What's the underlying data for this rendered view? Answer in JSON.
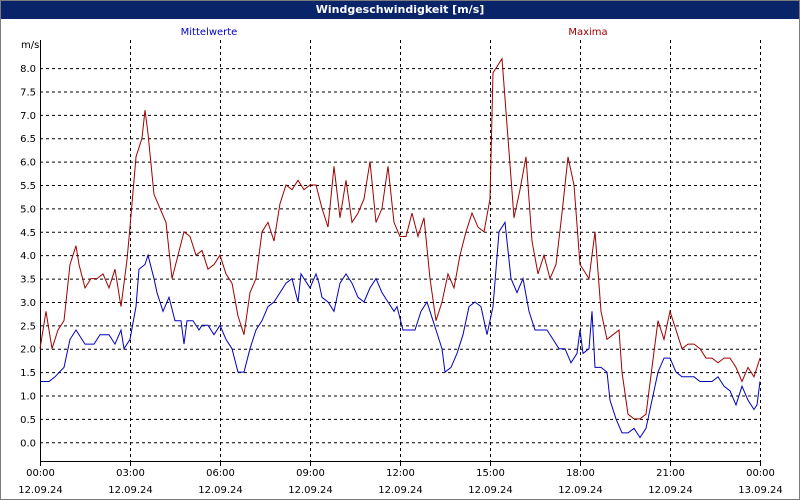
{
  "window": {
    "title": "Windgeschwindigkeit [m/s]"
  },
  "chart_data": {
    "type": "line",
    "title": "Windgeschwindigkeit [m/s]",
    "ylabel": "m/s",
    "xlabel": "",
    "ylim": [
      -0.4,
      8.6
    ],
    "xlim": [
      0,
      24
    ],
    "grid": true,
    "y_ticks": [
      "0.0",
      "0.5",
      "1.0",
      "1.5",
      "2.0",
      "2.5",
      "3.0",
      "3.5",
      "4.0",
      "4.5",
      "5.0",
      "5.5",
      "6.0",
      "6.5",
      "7.0",
      "7.5",
      "8.0"
    ],
    "x_ticks": [
      {
        "time": "00:00",
        "date": "12.09.24"
      },
      {
        "time": "03:00",
        "date": "12.09.24"
      },
      {
        "time": "06:00",
        "date": "12.09.24"
      },
      {
        "time": "09:00",
        "date": "12.09.24"
      },
      {
        "time": "12:00",
        "date": "12.09.24"
      },
      {
        "time": "15:00",
        "date": "12.09.24"
      },
      {
        "time": "18:00",
        "date": "12.09.24"
      },
      {
        "time": "21:00",
        "date": "12.09.24"
      },
      {
        "time": "00:00",
        "date": "13.09.24"
      }
    ],
    "series": [
      {
        "name": "Mittelwerte",
        "color": "#0000c0",
        "points": [
          [
            0.0,
            1.3
          ],
          [
            0.3,
            1.3
          ],
          [
            0.5,
            1.4
          ],
          [
            0.8,
            1.6
          ],
          [
            1.0,
            2.2
          ],
          [
            1.2,
            2.4
          ],
          [
            1.5,
            2.1
          ],
          [
            1.8,
            2.1
          ],
          [
            2.0,
            2.3
          ],
          [
            2.3,
            2.3
          ],
          [
            2.5,
            2.1
          ],
          [
            2.7,
            2.4
          ],
          [
            2.8,
            2.0
          ],
          [
            3.0,
            2.2
          ],
          [
            3.2,
            2.9
          ],
          [
            3.3,
            3.7
          ],
          [
            3.5,
            3.8
          ],
          [
            3.6,
            4.0
          ],
          [
            3.8,
            3.5
          ],
          [
            3.9,
            3.2
          ],
          [
            4.1,
            2.8
          ],
          [
            4.3,
            3.1
          ],
          [
            4.5,
            2.6
          ],
          [
            4.7,
            2.6
          ],
          [
            4.8,
            2.1
          ],
          [
            4.9,
            2.6
          ],
          [
            5.1,
            2.6
          ],
          [
            5.3,
            2.4
          ],
          [
            5.4,
            2.5
          ],
          [
            5.6,
            2.5
          ],
          [
            5.8,
            2.3
          ],
          [
            6.0,
            2.5
          ],
          [
            6.2,
            2.2
          ],
          [
            6.4,
            2.0
          ],
          [
            6.6,
            1.5
          ],
          [
            6.8,
            1.5
          ],
          [
            7.0,
            2.0
          ],
          [
            7.2,
            2.4
          ],
          [
            7.4,
            2.6
          ],
          [
            7.6,
            2.9
          ],
          [
            7.8,
            3.0
          ],
          [
            8.0,
            3.2
          ],
          [
            8.2,
            3.4
          ],
          [
            8.4,
            3.5
          ],
          [
            8.6,
            3.0
          ],
          [
            8.7,
            3.6
          ],
          [
            8.8,
            3.5
          ],
          [
            9.0,
            3.3
          ],
          [
            9.2,
            3.6
          ],
          [
            9.3,
            3.4
          ],
          [
            9.4,
            3.1
          ],
          [
            9.6,
            3.0
          ],
          [
            9.8,
            2.8
          ],
          [
            10.0,
            3.4
          ],
          [
            10.2,
            3.6
          ],
          [
            10.4,
            3.4
          ],
          [
            10.6,
            3.1
          ],
          [
            10.8,
            3.0
          ],
          [
            11.0,
            3.3
          ],
          [
            11.2,
            3.5
          ],
          [
            11.4,
            3.2
          ],
          [
            11.6,
            3.0
          ],
          [
            11.8,
            2.8
          ],
          [
            11.9,
            2.9
          ],
          [
            12.1,
            2.4
          ],
          [
            12.3,
            2.4
          ],
          [
            12.5,
            2.4
          ],
          [
            12.7,
            2.8
          ],
          [
            12.9,
            3.0
          ],
          [
            13.1,
            2.6
          ],
          [
            13.2,
            2.4
          ],
          [
            13.4,
            2.0
          ],
          [
            13.5,
            1.5
          ],
          [
            13.7,
            1.6
          ],
          [
            13.9,
            1.9
          ],
          [
            14.1,
            2.3
          ],
          [
            14.3,
            2.9
          ],
          [
            14.5,
            3.0
          ],
          [
            14.7,
            2.9
          ],
          [
            14.9,
            2.3
          ],
          [
            15.1,
            2.9
          ],
          [
            15.3,
            4.5
          ],
          [
            15.5,
            4.7
          ],
          [
            15.7,
            3.5
          ],
          [
            15.9,
            3.2
          ],
          [
            16.1,
            3.5
          ],
          [
            16.3,
            2.8
          ],
          [
            16.5,
            2.4
          ],
          [
            16.7,
            2.4
          ],
          [
            16.9,
            2.4
          ],
          [
            17.1,
            2.2
          ],
          [
            17.3,
            2.0
          ],
          [
            17.5,
            2.0
          ],
          [
            17.7,
            1.7
          ],
          [
            17.9,
            1.9
          ],
          [
            18.0,
            2.4
          ],
          [
            18.1,
            1.9
          ],
          [
            18.3,
            2.0
          ],
          [
            18.4,
            2.8
          ],
          [
            18.5,
            1.6
          ],
          [
            18.7,
            1.6
          ],
          [
            18.9,
            1.5
          ],
          [
            19.0,
            0.9
          ],
          [
            19.2,
            0.5
          ],
          [
            19.4,
            0.2
          ],
          [
            19.6,
            0.2
          ],
          [
            19.8,
            0.3
          ],
          [
            20.0,
            0.1
          ],
          [
            20.2,
            0.3
          ],
          [
            20.4,
            0.9
          ],
          [
            20.6,
            1.5
          ],
          [
            20.8,
            1.8
          ],
          [
            21.0,
            1.8
          ],
          [
            21.2,
            1.5
          ],
          [
            21.4,
            1.4
          ],
          [
            21.6,
            1.4
          ],
          [
            21.8,
            1.4
          ],
          [
            22.0,
            1.3
          ],
          [
            22.2,
            1.3
          ],
          [
            22.4,
            1.3
          ],
          [
            22.6,
            1.4
          ],
          [
            22.8,
            1.2
          ],
          [
            23.0,
            1.1
          ],
          [
            23.2,
            0.8
          ],
          [
            23.4,
            1.2
          ],
          [
            23.6,
            0.9
          ],
          [
            23.8,
            0.7
          ],
          [
            23.9,
            0.8
          ],
          [
            24.0,
            1.3
          ]
        ]
      },
      {
        "name": "Maxima",
        "color": "#a00000",
        "points": [
          [
            0.0,
            2.0
          ],
          [
            0.2,
            2.8
          ],
          [
            0.4,
            2.0
          ],
          [
            0.6,
            2.4
          ],
          [
            0.8,
            2.6
          ],
          [
            1.0,
            3.8
          ],
          [
            1.2,
            4.2
          ],
          [
            1.3,
            3.8
          ],
          [
            1.5,
            3.3
          ],
          [
            1.7,
            3.5
          ],
          [
            1.9,
            3.5
          ],
          [
            2.1,
            3.6
          ],
          [
            2.3,
            3.3
          ],
          [
            2.5,
            3.7
          ],
          [
            2.7,
            2.9
          ],
          [
            2.9,
            3.9
          ],
          [
            3.0,
            4.6
          ],
          [
            3.2,
            6.1
          ],
          [
            3.4,
            6.5
          ],
          [
            3.5,
            7.1
          ],
          [
            3.6,
            6.6
          ],
          [
            3.8,
            5.3
          ],
          [
            4.0,
            5.0
          ],
          [
            4.2,
            4.7
          ],
          [
            4.4,
            3.5
          ],
          [
            4.6,
            4.0
          ],
          [
            4.8,
            4.5
          ],
          [
            5.0,
            4.4
          ],
          [
            5.2,
            4.0
          ],
          [
            5.4,
            4.1
          ],
          [
            5.6,
            3.7
          ],
          [
            5.8,
            3.8
          ],
          [
            6.0,
            4.0
          ],
          [
            6.2,
            3.6
          ],
          [
            6.4,
            3.4
          ],
          [
            6.6,
            2.7
          ],
          [
            6.8,
            2.3
          ],
          [
            7.0,
            3.2
          ],
          [
            7.2,
            3.5
          ],
          [
            7.4,
            4.5
          ],
          [
            7.6,
            4.7
          ],
          [
            7.8,
            4.3
          ],
          [
            8.0,
            5.1
          ],
          [
            8.2,
            5.5
          ],
          [
            8.4,
            5.4
          ],
          [
            8.6,
            5.6
          ],
          [
            8.8,
            5.4
          ],
          [
            9.0,
            5.5
          ],
          [
            9.2,
            5.5
          ],
          [
            9.4,
            5.0
          ],
          [
            9.6,
            4.6
          ],
          [
            9.8,
            5.9
          ],
          [
            10.0,
            4.8
          ],
          [
            10.2,
            5.6
          ],
          [
            10.4,
            4.7
          ],
          [
            10.6,
            4.9
          ],
          [
            10.8,
            5.2
          ],
          [
            11.0,
            6.0
          ],
          [
            11.2,
            4.7
          ],
          [
            11.4,
            5.0
          ],
          [
            11.6,
            5.9
          ],
          [
            11.8,
            4.7
          ],
          [
            12.0,
            4.4
          ],
          [
            12.2,
            4.4
          ],
          [
            12.4,
            4.9
          ],
          [
            12.6,
            4.4
          ],
          [
            12.8,
            4.8
          ],
          [
            13.0,
            3.5
          ],
          [
            13.2,
            2.6
          ],
          [
            13.4,
            3.0
          ],
          [
            13.6,
            3.6
          ],
          [
            13.8,
            3.3
          ],
          [
            14.0,
            4.0
          ],
          [
            14.2,
            4.5
          ],
          [
            14.4,
            4.9
          ],
          [
            14.6,
            4.6
          ],
          [
            14.8,
            4.5
          ],
          [
            15.0,
            5.2
          ],
          [
            15.1,
            7.9
          ],
          [
            15.2,
            8.0
          ],
          [
            15.4,
            8.2
          ],
          [
            15.6,
            6.5
          ],
          [
            15.8,
            4.8
          ],
          [
            16.0,
            5.4
          ],
          [
            16.2,
            6.1
          ],
          [
            16.4,
            4.3
          ],
          [
            16.6,
            3.6
          ],
          [
            16.8,
            4.0
          ],
          [
            17.0,
            3.5
          ],
          [
            17.2,
            3.8
          ],
          [
            17.4,
            4.9
          ],
          [
            17.6,
            6.1
          ],
          [
            17.8,
            5.5
          ],
          [
            18.0,
            3.8
          ],
          [
            18.3,
            3.5
          ],
          [
            18.5,
            4.5
          ],
          [
            18.7,
            2.8
          ],
          [
            18.9,
            2.2
          ],
          [
            19.1,
            2.3
          ],
          [
            19.3,
            2.4
          ],
          [
            19.4,
            1.5
          ],
          [
            19.6,
            0.6
          ],
          [
            19.8,
            0.5
          ],
          [
            20.0,
            0.5
          ],
          [
            20.2,
            0.6
          ],
          [
            20.4,
            1.6
          ],
          [
            20.6,
            2.6
          ],
          [
            20.8,
            2.2
          ],
          [
            21.0,
            2.8
          ],
          [
            21.2,
            2.4
          ],
          [
            21.4,
            2.0
          ],
          [
            21.6,
            2.1
          ],
          [
            21.8,
            2.1
          ],
          [
            22.0,
            2.0
          ],
          [
            22.2,
            1.8
          ],
          [
            22.4,
            1.8
          ],
          [
            22.6,
            1.7
          ],
          [
            22.8,
            1.8
          ],
          [
            23.0,
            1.8
          ],
          [
            23.2,
            1.6
          ],
          [
            23.4,
            1.3
          ],
          [
            23.6,
            1.6
          ],
          [
            23.8,
            1.4
          ],
          [
            24.0,
            1.8
          ]
        ]
      }
    ]
  }
}
